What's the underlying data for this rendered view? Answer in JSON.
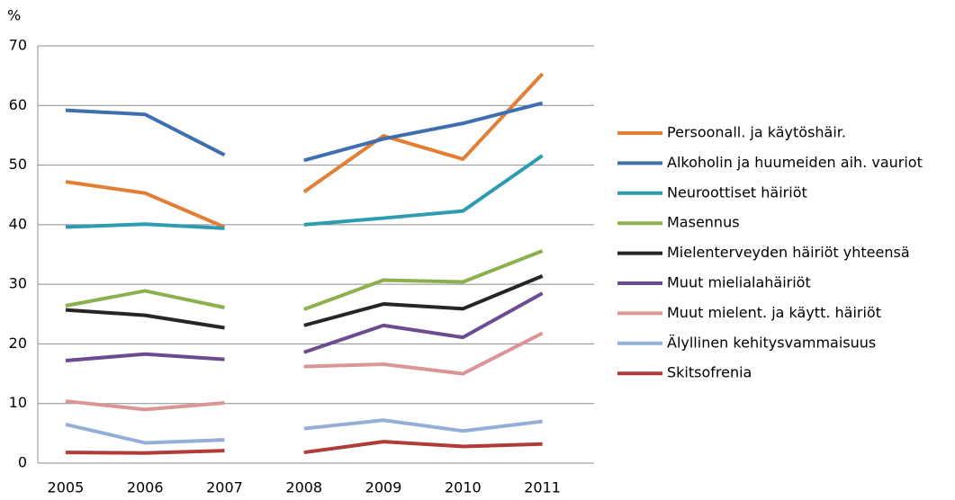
{
  "chart_data": {
    "type": "line",
    "y_label": "%",
    "categories": [
      "2005",
      "2006",
      "2007",
      null,
      "2008",
      "2009",
      "2010",
      "2011"
    ],
    "ylim": [
      0,
      70
    ],
    "yticks": [
      0,
      10,
      20,
      30,
      40,
      50,
      60,
      70
    ],
    "grid": true,
    "legend": "right",
    "series": [
      {
        "name": "Persoonall. ja käytöshäir.",
        "color": "#e27f35",
        "values": [
          47.2,
          45.3,
          39.6,
          null,
          45.5,
          54.9,
          51.0,
          65.3
        ]
      },
      {
        "name": "Alkoholin ja huumeiden aih. vauriot",
        "color": "#3e6fae",
        "values": [
          59.2,
          58.5,
          51.7,
          null,
          50.8,
          54.4,
          57.0,
          60.4
        ]
      },
      {
        "name": "Neuroottiset häiriöt",
        "color": "#2f9bb0",
        "values": [
          39.6,
          40.1,
          39.4,
          null,
          40.0,
          41.1,
          42.3,
          51.6
        ]
      },
      {
        "name": "Masennus",
        "color": "#8db04f",
        "values": [
          26.4,
          28.9,
          26.1,
          null,
          25.8,
          30.7,
          30.4,
          35.6
        ]
      },
      {
        "name": "Mielenterveyden häiriöt yhteensä",
        "color": "#262626",
        "values": [
          25.7,
          24.8,
          22.7,
          null,
          23.1,
          26.7,
          25.9,
          31.4
        ]
      },
      {
        "name": "Muut mielialahäiriöt",
        "color": "#6c4b90",
        "values": [
          17.2,
          18.3,
          17.4,
          null,
          18.6,
          23.1,
          21.1,
          28.5
        ]
      },
      {
        "name": "Muut mielent. ja käytt. häiriöt",
        "color": "#d99694",
        "values": [
          10.4,
          9.0,
          10.1,
          null,
          16.2,
          16.6,
          15.0,
          21.8
        ]
      },
      {
        "name": "Älyllinen kehitysvammaisuus",
        "color": "#94afd7",
        "values": [
          6.5,
          3.4,
          3.9,
          null,
          5.8,
          7.2,
          5.4,
          7.0
        ]
      },
      {
        "name": "Skitsofrenia",
        "color": "#b03b37",
        "values": [
          1.8,
          1.7,
          2.1,
          null,
          1.8,
          3.6,
          2.8,
          3.2
        ]
      }
    ]
  }
}
